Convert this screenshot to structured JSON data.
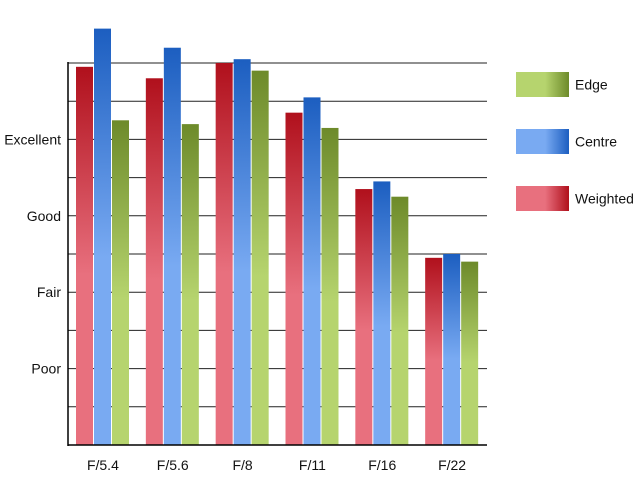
{
  "chart_data": {
    "type": "bar",
    "title": "",
    "xlabel": "",
    "ylabel": "",
    "categories": [
      "F/5.4",
      "F/5.6",
      "F/8",
      "F/11",
      "F/16",
      "F/22"
    ],
    "y_tick_labels": [
      {
        "value": 2,
        "label": "Poor"
      },
      {
        "value": 4,
        "label": "Fair"
      },
      {
        "value": 6,
        "label": "Good"
      },
      {
        "value": 8,
        "label": "Excellent"
      }
    ],
    "ylim": [
      0,
      10
    ],
    "grid": "horizontal, every 1 unit",
    "legend_position": "right",
    "series": [
      {
        "name": "Weighted",
        "values": [
          9.9,
          9.6,
          10.0,
          8.7,
          6.7,
          4.9
        ],
        "colors": [
          "#e8707e",
          "#b0101c"
        ]
      },
      {
        "name": "Centre",
        "values": [
          10.9,
          10.4,
          10.1,
          9.1,
          6.9,
          5.0
        ],
        "colors": [
          "#79aaf2",
          "#1c5ec0"
        ]
      },
      {
        "name": "Edge",
        "values": [
          8.5,
          8.4,
          9.8,
          8.3,
          6.5,
          4.8
        ],
        "colors": [
          "#b6d46e",
          "#6d8a2a"
        ]
      }
    ],
    "legend_order": [
      "Edge",
      "Centre",
      "Weighted"
    ]
  }
}
